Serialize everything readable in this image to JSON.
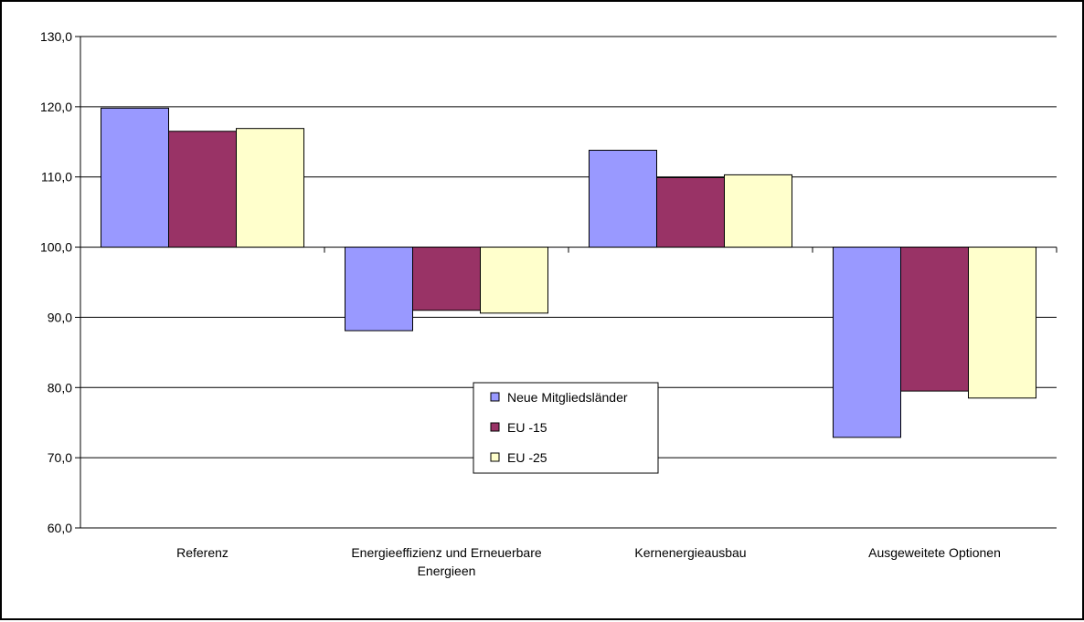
{
  "chart_data": {
    "type": "bar",
    "categories": [
      [
        "Referenz"
      ],
      [
        "Energieeffizienz und Erneuerbare",
        "Energieen"
      ],
      [
        "Kernenergieausbau"
      ],
      [
        "Ausgeweitete Optionen"
      ]
    ],
    "baseline": 100,
    "ylim": [
      60,
      130
    ],
    "yticks": [
      "60,0",
      "70,0",
      "80,0",
      "90,0",
      "100,0",
      "110,0",
      "120,0",
      "130,0"
    ],
    "grid": true,
    "legend_position": "center",
    "series": [
      {
        "name": "Neue Mitgliedsländer",
        "color": "#9999ff",
        "values": [
          119.8,
          88.1,
          113.8,
          72.9
        ]
      },
      {
        "name": "EU -15",
        "color": "#993366",
        "values": [
          116.5,
          91.0,
          109.9,
          79.5
        ]
      },
      {
        "name": "EU -25",
        "color": "#ffffcc",
        "values": [
          116.9,
          90.6,
          110.3,
          78.5
        ]
      }
    ]
  }
}
